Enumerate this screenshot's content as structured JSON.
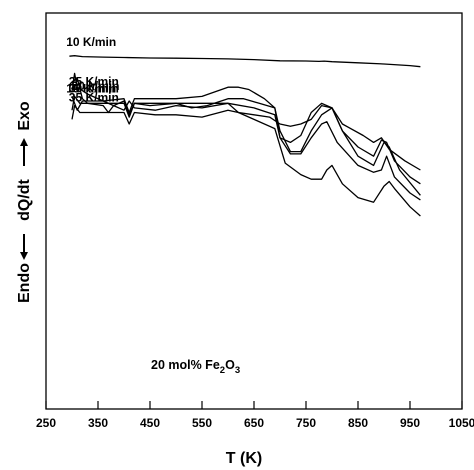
{
  "chart_data": {
    "type": "line",
    "xlabel": "T (K)",
    "ylabel_parts": {
      "endo": "Endo",
      "dqdt": "dQ/dt",
      "exo": "Exo"
    },
    "xlim": [
      250,
      1050
    ],
    "x_ticks": [
      250,
      350,
      450,
      550,
      650,
      750,
      850,
      950,
      1050
    ],
    "y_ticks_shown": false,
    "annotation": {
      "prefix": "20 mol% Fe",
      "sub1": "2",
      "mid": "O",
      "sub2": "3"
    },
    "series": [
      {
        "name": "10 K/min",
        "label": "10 K/min",
        "label_at_T": 335,
        "points": [
          [
            295,
            0.95
          ],
          [
            305,
            0.97
          ],
          [
            320,
            0.93
          ],
          [
            360,
            0.91
          ],
          [
            400,
            0.89
          ],
          [
            450,
            0.87
          ],
          [
            500,
            0.86
          ],
          [
            550,
            0.85
          ],
          [
            600,
            0.83
          ],
          [
            650,
            0.8
          ],
          [
            700,
            0.75
          ],
          [
            750,
            0.74
          ],
          [
            775,
            0.72
          ],
          [
            785,
            0.735
          ],
          [
            800,
            0.71
          ],
          [
            850,
            0.66
          ],
          [
            900,
            0.61
          ],
          [
            950,
            0.54
          ],
          [
            970,
            0.49
          ]
        ]
      },
      {
        "name": "15 K/min",
        "label": "15 K/min",
        "label_at_T": 335,
        "points": [
          [
            300,
            -0.2
          ],
          [
            310,
            0.0
          ],
          [
            320,
            -0.9
          ],
          [
            330,
            -1.1
          ],
          [
            360,
            -1.2
          ],
          [
            370,
            -1.5
          ],
          [
            380,
            -1.2
          ],
          [
            400,
            -1.4
          ],
          [
            410,
            -1.0
          ],
          [
            420,
            -1.3
          ],
          [
            460,
            -1.4
          ],
          [
            500,
            -1.2
          ],
          [
            550,
            -1.3
          ],
          [
            600,
            -1.1
          ],
          [
            620,
            -1.5
          ],
          [
            650,
            -1.6
          ],
          [
            680,
            -1.7
          ],
          [
            700,
            -2.0
          ],
          [
            720,
            -2.1
          ],
          [
            740,
            -2.0
          ],
          [
            760,
            -1.8
          ],
          [
            780,
            -1.2
          ],
          [
            800,
            -1.3
          ],
          [
            820,
            -2.0
          ],
          [
            860,
            -2.5
          ],
          [
            880,
            -2.8
          ],
          [
            895,
            -2.6
          ],
          [
            910,
            -3.1
          ],
          [
            940,
            -3.6
          ],
          [
            970,
            -4.0
          ]
        ]
      },
      {
        "name": "20 k/min",
        "label": "20 k/min",
        "label_at_T": 345,
        "points": [
          [
            300,
            -0.8
          ],
          [
            310,
            -1.4
          ],
          [
            320,
            -1.0
          ],
          [
            360,
            -1.0
          ],
          [
            400,
            -0.9
          ],
          [
            410,
            -1.5
          ],
          [
            420,
            -0.9
          ],
          [
            450,
            -0.9
          ],
          [
            500,
            -0.9
          ],
          [
            550,
            -0.8
          ],
          [
            600,
            -0.4
          ],
          [
            620,
            -0.4
          ],
          [
            640,
            -0.5
          ],
          [
            670,
            -0.9
          ],
          [
            690,
            -1.3
          ],
          [
            700,
            -2.6
          ],
          [
            720,
            -2.8
          ],
          [
            740,
            -2.5
          ],
          [
            760,
            -1.5
          ],
          [
            780,
            -1.1
          ],
          [
            800,
            -1.3
          ],
          [
            820,
            -2.3
          ],
          [
            850,
            -3.0
          ],
          [
            880,
            -3.4
          ],
          [
            895,
            -2.7
          ],
          [
            905,
            -2.8
          ],
          [
            920,
            -3.6
          ],
          [
            950,
            -4.3
          ],
          [
            970,
            -4.6
          ]
        ]
      },
      {
        "name": "25 K/min",
        "label": "25 K/min",
        "label_at_T": 340,
        "points": [
          [
            300,
            -0.6
          ],
          [
            305,
            0.2
          ],
          [
            310,
            -0.4
          ],
          [
            330,
            -0.7
          ],
          [
            360,
            -1.0
          ],
          [
            380,
            -1.2
          ],
          [
            400,
            -1.0
          ],
          [
            410,
            -1.6
          ],
          [
            420,
            -1.1
          ],
          [
            450,
            -1.2
          ],
          [
            500,
            -1.1
          ],
          [
            530,
            -1.3
          ],
          [
            560,
            -1.2
          ],
          [
            600,
            -0.9
          ],
          [
            630,
            -0.9
          ],
          [
            660,
            -1.1
          ],
          [
            690,
            -1.3
          ],
          [
            700,
            -2.3
          ],
          [
            720,
            -3.2
          ],
          [
            740,
            -3.2
          ],
          [
            760,
            -2.3
          ],
          [
            780,
            -1.6
          ],
          [
            800,
            -1.3
          ],
          [
            820,
            -2.3
          ],
          [
            850,
            -3.4
          ],
          [
            880,
            -3.8
          ],
          [
            900,
            -2.8
          ],
          [
            910,
            -3.0
          ],
          [
            930,
            -4.0
          ],
          [
            970,
            -5.1
          ]
        ]
      },
      {
        "name": "30 K/min",
        "label": "30 K/min",
        "label_at_T": 340,
        "points": [
          [
            300,
            -1.4
          ],
          [
            305,
            -0.8
          ],
          [
            315,
            -1.1
          ],
          [
            360,
            -1.1
          ],
          [
            400,
            -1.1
          ],
          [
            410,
            -1.7
          ],
          [
            420,
            -1.1
          ],
          [
            460,
            -1.1
          ],
          [
            500,
            -1.1
          ],
          [
            550,
            -1.1
          ],
          [
            600,
            -1.1
          ],
          [
            650,
            -1.3
          ],
          [
            690,
            -1.6
          ],
          [
            700,
            -2.6
          ],
          [
            720,
            -3.3
          ],
          [
            740,
            -3.3
          ],
          [
            760,
            -2.6
          ],
          [
            780,
            -2.0
          ],
          [
            790,
            -1.9
          ],
          [
            810,
            -2.8
          ],
          [
            850,
            -3.8
          ],
          [
            880,
            -4.1
          ],
          [
            895,
            -4.0
          ],
          [
            905,
            -3.4
          ],
          [
            920,
            -4.3
          ],
          [
            950,
            -5.0
          ],
          [
            970,
            -5.3
          ]
        ]
      },
      {
        "name": "35 K/min",
        "label": "35 K/min",
        "label_at_T": 340,
        "points": [
          [
            300,
            -1.8
          ],
          [
            305,
            -1.2
          ],
          [
            315,
            -1.5
          ],
          [
            360,
            -1.5
          ],
          [
            400,
            -1.5
          ],
          [
            410,
            -2.0
          ],
          [
            420,
            -1.5
          ],
          [
            460,
            -1.6
          ],
          [
            500,
            -1.6
          ],
          [
            550,
            -1.7
          ],
          [
            600,
            -1.4
          ],
          [
            620,
            -1.5
          ],
          [
            650,
            -1.8
          ],
          [
            690,
            -2.2
          ],
          [
            710,
            -3.7
          ],
          [
            740,
            -4.2
          ],
          [
            760,
            -4.4
          ],
          [
            780,
            -4.4
          ],
          [
            790,
            -4.0
          ],
          [
            800,
            -3.8
          ],
          [
            820,
            -4.6
          ],
          [
            850,
            -5.2
          ],
          [
            880,
            -5.4
          ],
          [
            900,
            -4.7
          ],
          [
            910,
            -4.5
          ],
          [
            920,
            -4.8
          ],
          [
            950,
            -5.6
          ],
          [
            970,
            -6.0
          ]
        ]
      }
    ]
  }
}
